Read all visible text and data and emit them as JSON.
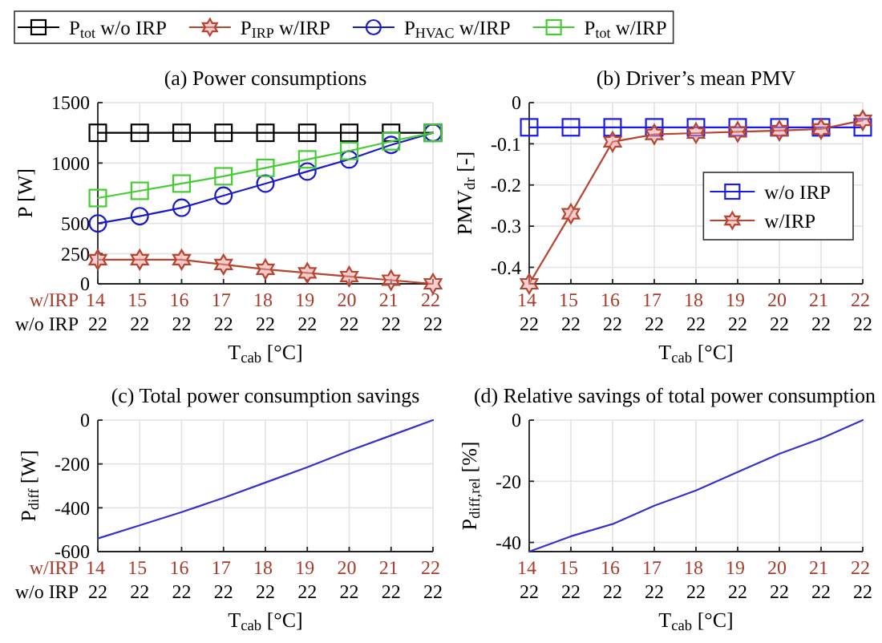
{
  "chart_data": [
    {
      "type": "line",
      "title": "(a) Power consumptions",
      "xlabel": "T$_{cab}$ [°C]",
      "ylabel": "P [W]",
      "categories": [
        "14\n22",
        "15\n22",
        "16\n22",
        "17\n22",
        "18\n22",
        "19\n22",
        "20\n22",
        "21\n22",
        "22\n22"
      ],
      "ylim": [
        0,
        1500
      ],
      "yticks": [
        0,
        250,
        500,
        1000,
        1500
      ],
      "grid": true,
      "legend": "top",
      "annotations": [
        "w/IRP",
        "w/o IRP"
      ],
      "series": [
        {
          "name": "P$_{tot}$ w/o IRP",
          "color": "#000000",
          "marker": "square",
          "values": [
            1250,
            1250,
            1250,
            1250,
            1250,
            1250,
            1250,
            1250,
            1250
          ]
        },
        {
          "name": "P$_{IRP}$ w/IRP",
          "color": "#b8432f",
          "marker": "star",
          "values": [
            200,
            200,
            200,
            160,
            120,
            90,
            60,
            30,
            0
          ]
        },
        {
          "name": "P$_{HVAC}$ w/IRP",
          "color": "#1a1acc",
          "marker": "circle",
          "values": [
            500,
            560,
            630,
            730,
            830,
            930,
            1030,
            1150,
            1250
          ]
        },
        {
          "name": "P$_{tot}$ w/IRP",
          "color": "#44cc33",
          "marker": "square",
          "values": [
            710,
            770,
            830,
            890,
            960,
            1030,
            1100,
            1180,
            1250
          ]
        }
      ]
    },
    {
      "type": "line",
      "title": "(b) Driver’s mean PMV",
      "xlabel": "T$_{cab}$ [°C]",
      "ylabel": "PMV$_{dr}$ [-]",
      "categories": [
        "14\n22",
        "15\n22",
        "16\n22",
        "17\n22",
        "18\n22",
        "19\n22",
        "20\n22",
        "21\n22",
        "22\n22"
      ],
      "ylim": [
        -0.44,
        0
      ],
      "yticks": [
        -0.4,
        -0.3,
        -0.2,
        -0.1,
        0
      ],
      "grid": true,
      "legend": "right",
      "series": [
        {
          "name": "w/o IRP",
          "color": "#1a1aee",
          "marker": "square",
          "values": [
            -0.06,
            -0.06,
            -0.06,
            -0.06,
            -0.06,
            -0.06,
            -0.06,
            -0.06,
            -0.06
          ]
        },
        {
          "name": "w/IRP",
          "color": "#b8432f",
          "marker": "star",
          "values": [
            -0.44,
            -0.27,
            -0.095,
            -0.077,
            -0.074,
            -0.071,
            -0.068,
            -0.064,
            -0.043
          ]
        }
      ]
    },
    {
      "type": "line",
      "title": "(c) Total power consumption savings",
      "xlabel": "T$_{cab}$ [°C]",
      "ylabel": "P$_{diff}$ [W]",
      "categories": [
        "14\n22",
        "15\n22",
        "16\n22",
        "17\n22",
        "18\n22",
        "19\n22",
        "20\n22",
        "21\n22",
        "22\n22"
      ],
      "ylim": [
        -600,
        0
      ],
      "yticks": [
        -600,
        -400,
        -200,
        0
      ],
      "grid": true,
      "annotations": [
        "w/IRP",
        "w/o IRP"
      ],
      "series": [
        {
          "color": "#3333cc",
          "values": [
            -540,
            -480,
            -420,
            -355,
            -285,
            -215,
            -140,
            -70,
            0
          ]
        }
      ]
    },
    {
      "type": "line",
      "title": "(d) Relative savings of total power consumption",
      "xlabel": "T$_{cab}$ [°C]",
      "ylabel": "P$_{diff,rel}$ [%]",
      "categories": [
        "14\n22",
        "15\n22",
        "16\n22",
        "17\n22",
        "18\n22",
        "19\n22",
        "20\n22",
        "21\n22",
        "22\n22"
      ],
      "ylim": [
        -43,
        0
      ],
      "yticks": [
        -40,
        -20,
        0
      ],
      "grid": true,
      "series": [
        {
          "color": "#3333cc",
          "values": [
            -43,
            -38,
            -34,
            -28,
            -23,
            -17,
            -11,
            -6,
            0
          ]
        }
      ]
    }
  ]
}
